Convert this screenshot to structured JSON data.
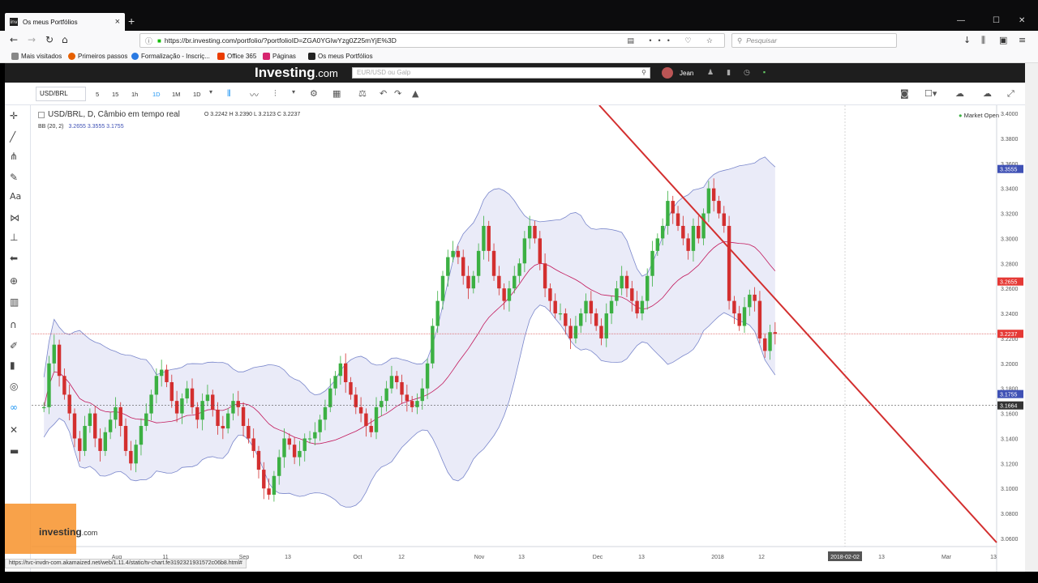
{
  "browser": {
    "tab_title": "Os meus Portfólios",
    "url": "https://br.investing.com/portfolio/?portfolioID=ZGA0YGIwYzg0Z25mYjE%3D",
    "search_placeholder": "Pesquisar",
    "bookmarks": [
      "Mais visitados",
      "Primeiros passos",
      "Formalização - Inscriç...",
      "Office 365",
      "Páginas",
      "Os meus Portfólios"
    ],
    "status_url": "https://tvc-invdn-com.akamaized.net/web/1.11.4/static/tv-chart.fe3192321931572c06b8.html#"
  },
  "site": {
    "logo": "Investing",
    "logo_suffix": ".com",
    "search_placeholder": "EUR/USD ou Galp",
    "user": "Jean"
  },
  "toolbar": {
    "symbol": "USD/BRL",
    "intervals": [
      "5",
      "15",
      "1h",
      "1D",
      "1M",
      "1D"
    ]
  },
  "legend": {
    "title": "USD/BRL, D, Câmbio em tempo real",
    "ohlc": "O 3.2242  H 3.2390  L 3.2123  C 3.2237",
    "bb_label": "BB (20, 2)",
    "bb_values": "3.2655  3.3555  3.1755",
    "market": "Market Open"
  },
  "watermark": {
    "text": "investing",
    "suffix": ".com"
  },
  "chart_data": {
    "type": "candlestick",
    "price_axis": [
      "3.4000",
      "3.3800",
      "3.3600",
      "3.3400",
      "3.3200",
      "3.3000",
      "3.2800",
      "3.2600",
      "3.2400",
      "3.2200",
      "3.2000",
      "3.1800",
      "3.1600",
      "3.1400",
      "3.1200",
      "3.1000",
      "3.0800",
      "3.0600"
    ],
    "ylim": [
      3.06,
      3.4
    ],
    "date_axis": [
      "Aug",
      "11",
      "Sep",
      "13",
      "Oct",
      "12",
      "Nov",
      "13",
      "Dec",
      "13",
      "2018",
      "12",
      "2018-02-02",
      "13",
      "Mar",
      "13"
    ],
    "price_badges": [
      {
        "value": "3.3555",
        "color": "#3f51b5"
      },
      {
        "value": "3.2655",
        "color": "#e53935"
      },
      {
        "value": "3.2237",
        "color": "#e53935"
      },
      {
        "value": "3.1755",
        "color": "#3f51b5"
      },
      {
        "value": "3.1664",
        "color": "#333333"
      }
    ],
    "bb_upper_color": "#7986cb",
    "bb_mid_color": "#c2185b",
    "bb_fill": "#d8daf2",
    "up_color": "#3cb043",
    "down_color": "#d32f2f",
    "trendline_color": "#d32f2f",
    "close": [
      3.165,
      3.2,
      3.215,
      3.19,
      3.175,
      3.16,
      3.14,
      3.13,
      3.15,
      3.16,
      3.14,
      3.13,
      3.145,
      3.155,
      3.165,
      3.15,
      3.13,
      3.12,
      3.135,
      3.15,
      3.16,
      3.175,
      3.19,
      3.195,
      3.185,
      3.17,
      3.16,
      3.172,
      3.18,
      3.165,
      3.155,
      3.17,
      3.175,
      3.163,
      3.15,
      3.148,
      3.16,
      3.17,
      3.165,
      3.15,
      3.14,
      3.13,
      3.115,
      3.1,
      3.095,
      3.11,
      3.125,
      3.14,
      3.135,
      3.125,
      3.13,
      3.14,
      3.14,
      3.145,
      3.155,
      3.165,
      3.18,
      3.19,
      3.2,
      3.185,
      3.175,
      3.165,
      3.16,
      3.15,
      3.145,
      3.165,
      3.17,
      3.18,
      3.19,
      3.185,
      3.175,
      3.17,
      3.165,
      3.17,
      3.18,
      3.2,
      3.23,
      3.25,
      3.27,
      3.285,
      3.29,
      3.285,
      3.27,
      3.26,
      3.27,
      3.29,
      3.31,
      3.29,
      3.27,
      3.26,
      3.25,
      3.26,
      3.27,
      3.28,
      3.3,
      3.31,
      3.3,
      3.28,
      3.26,
      3.25,
      3.24,
      3.24,
      3.23,
      3.22,
      3.23,
      3.24,
      3.25,
      3.24,
      3.23,
      3.22,
      3.24,
      3.25,
      3.26,
      3.27,
      3.26,
      3.25,
      3.24,
      3.25,
      3.27,
      3.29,
      3.3,
      3.31,
      3.33,
      3.32,
      3.31,
      3.3,
      3.29,
      3.31,
      3.3,
      3.32,
      3.34,
      3.33,
      3.32,
      3.31,
      3.25,
      3.24,
      3.23,
      3.245,
      3.255,
      3.25,
      3.22,
      3.21,
      3.225,
      3.2237
    ]
  }
}
